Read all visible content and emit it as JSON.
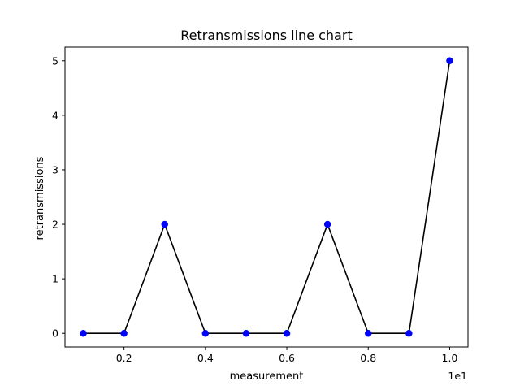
{
  "chart_data": {
    "type": "line",
    "title": "Retransmissions line chart",
    "xlabel": "measurement",
    "ylabel": "retransmissions",
    "x_offset_text": "1e1",
    "x": [
      1,
      2,
      3,
      4,
      5,
      6,
      7,
      8,
      9,
      10
    ],
    "series": [
      {
        "values": [
          0,
          0,
          2,
          0,
          0,
          0,
          2,
          0,
          0,
          5
        ]
      }
    ],
    "xticks": [
      2,
      4,
      6,
      8,
      10
    ],
    "xtick_labels": [
      "0.2",
      "0.4",
      "0.6",
      "0.8",
      "1.0"
    ],
    "yticks": [
      0,
      1,
      2,
      3,
      4,
      5
    ],
    "ytick_labels": [
      "0",
      "1",
      "2",
      "3",
      "4",
      "5"
    ],
    "xlim": [
      0.55,
      10.45
    ],
    "ylim": [
      -0.25,
      5.25
    ],
    "grid": false,
    "line_color": "#000000",
    "marker_color": "#0000ff"
  }
}
